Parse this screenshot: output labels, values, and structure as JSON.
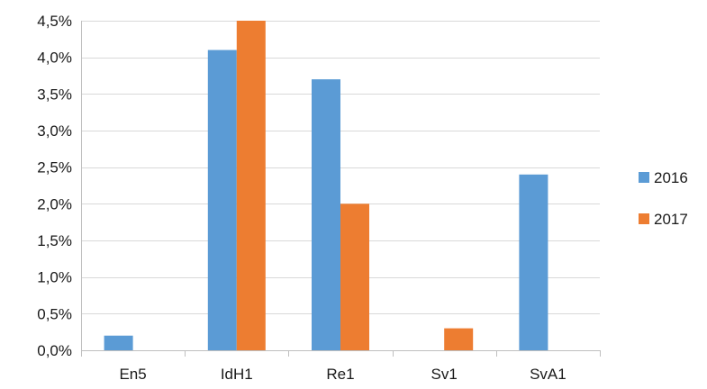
{
  "chart_data": {
    "type": "bar",
    "title": "",
    "xlabel": "",
    "ylabel": "",
    "categories": [
      "En5",
      "IdH1",
      "Re1",
      "Sv1",
      "SvA1"
    ],
    "series": [
      {
        "name": "2016",
        "color": "#5B9BD5",
        "values": [
          0.2,
          4.1,
          3.7,
          0.0,
          2.4
        ]
      },
      {
        "name": "2017",
        "color": "#ED7D31",
        "values": [
          0.0,
          4.5,
          2.0,
          0.3,
          0.0
        ]
      }
    ],
    "ylim": [
      0,
      4.5
    ],
    "yticks": [
      0,
      0.5,
      1.0,
      1.5,
      2.0,
      2.5,
      3.0,
      3.5,
      4.0,
      4.5
    ],
    "ytick_labels": [
      "0,0%",
      "0,5%",
      "1,0%",
      "1,5%",
      "2,0%",
      "2,5%",
      "3,0%",
      "3,5%",
      "4,0%",
      "4,5%"
    ],
    "grid": true,
    "legend_position": "right"
  }
}
